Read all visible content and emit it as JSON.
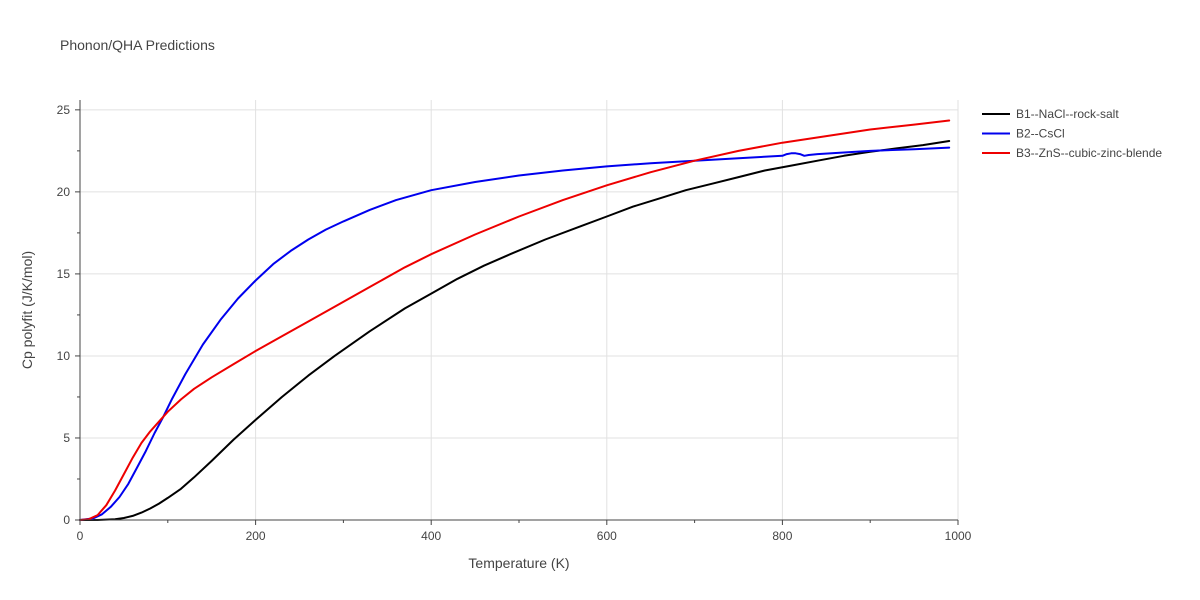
{
  "chart_data": {
    "type": "line",
    "title": "Phonon/QHA Predictions",
    "xlabel": "Temperature (K)",
    "ylabel": "Cp polyfit (J/K/mol)",
    "xlim": [
      0,
      1000
    ],
    "ylim": [
      0,
      25.6
    ],
    "xticks": [
      0,
      200,
      400,
      600,
      800,
      1000
    ],
    "yticks": [
      0,
      5,
      10,
      15,
      20,
      25
    ],
    "grid": true,
    "legend_position": "right",
    "series": [
      {
        "name": "B1--NaCl--rock-salt",
        "color": "#000000",
        "x": [
          0,
          20,
          40,
          50,
          60,
          70,
          80,
          90,
          100,
          115,
          130,
          150,
          175,
          200,
          230,
          260,
          290,
          330,
          370,
          400,
          430,
          460,
          490,
          530,
          570,
          600,
          630,
          660,
          690,
          720,
          750,
          780,
          810,
          840,
          870,
          900,
          930,
          960,
          990
        ],
        "y": [
          0,
          0,
          0.05,
          0.12,
          0.25,
          0.45,
          0.7,
          1.0,
          1.35,
          1.9,
          2.6,
          3.6,
          4.9,
          6.1,
          7.5,
          8.8,
          10.0,
          11.5,
          12.9,
          13.8,
          14.7,
          15.5,
          16.2,
          17.1,
          17.9,
          18.5,
          19.1,
          19.6,
          20.1,
          20.5,
          20.9,
          21.3,
          21.6,
          21.9,
          22.2,
          22.45,
          22.65,
          22.85,
          23.1
        ]
      },
      {
        "name": "B2--CsCl",
        "color": "#0000ee",
        "x": [
          0,
          15,
          25,
          35,
          45,
          55,
          65,
          75,
          85,
          95,
          105,
          120,
          140,
          160,
          180,
          200,
          220,
          240,
          260,
          280,
          300,
          330,
          360,
          400,
          450,
          500,
          550,
          600,
          650,
          700,
          750,
          800,
          805,
          810,
          815,
          820,
          825,
          830,
          840,
          870,
          900,
          950,
          990
        ],
        "y": [
          0,
          0.1,
          0.35,
          0.8,
          1.4,
          2.2,
          3.2,
          4.2,
          5.3,
          6.3,
          7.4,
          8.9,
          10.7,
          12.2,
          13.5,
          14.6,
          15.6,
          16.4,
          17.1,
          17.7,
          18.2,
          18.9,
          19.5,
          20.1,
          20.6,
          21.0,
          21.3,
          21.55,
          21.75,
          21.9,
          22.05,
          22.2,
          22.3,
          22.35,
          22.35,
          22.3,
          22.2,
          22.25,
          22.3,
          22.4,
          22.5,
          22.6,
          22.7
        ]
      },
      {
        "name": "B3--ZnS--cubic-zinc-blende",
        "color": "#ee0000",
        "x": [
          0,
          10,
          20,
          30,
          40,
          50,
          60,
          70,
          80,
          90,
          100,
          115,
          130,
          150,
          175,
          200,
          230,
          260,
          290,
          330,
          370,
          400,
          450,
          500,
          550,
          600,
          650,
          700,
          750,
          800,
          850,
          900,
          950,
          990
        ],
        "y": [
          0,
          0.05,
          0.3,
          0.9,
          1.8,
          2.8,
          3.8,
          4.7,
          5.4,
          6.0,
          6.6,
          7.35,
          8.0,
          8.7,
          9.5,
          10.3,
          11.2,
          12.1,
          13.0,
          14.2,
          15.4,
          16.2,
          17.4,
          18.5,
          19.5,
          20.4,
          21.2,
          21.9,
          22.5,
          23.0,
          23.4,
          23.8,
          24.1,
          24.35
        ]
      }
    ]
  }
}
